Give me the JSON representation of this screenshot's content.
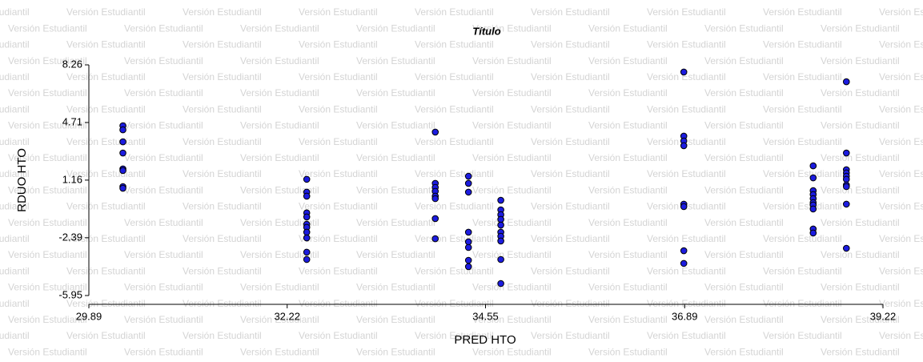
{
  "watermark": "Versión Estudiantil",
  "chart_data": {
    "type": "scatter",
    "title": "Título",
    "x_label": "PRED HTO",
    "y_label": "RDUO HTO",
    "xlim": [
      29.89,
      39.22
    ],
    "xticks": [
      29.89,
      32.22,
      34.55,
      36.89,
      39.22
    ],
    "ylim": [
      -5.95,
      8.26
    ],
    "yticks": [
      -5.95,
      -2.39,
      1.16,
      4.71,
      8.26
    ],
    "color": "#1c1ce0",
    "x": [
      30.29,
      30.29,
      30.29,
      30.29,
      30.29,
      30.29,
      30.29,
      30.29,
      32.45,
      32.45,
      32.45,
      32.45,
      32.45,
      32.45,
      32.45,
      32.45,
      32.45,
      32.45,
      32.45,
      33.96,
      33.96,
      33.96,
      33.96,
      33.96,
      33.96,
      33.96,
      33.96,
      34.35,
      34.35,
      34.35,
      34.35,
      34.35,
      34.35,
      34.35,
      34.35,
      34.73,
      34.73,
      34.73,
      34.73,
      34.73,
      34.73,
      34.73,
      34.73,
      34.73,
      34.73,
      36.88,
      36.88,
      36.88,
      36.88,
      36.88,
      36.88,
      36.88,
      36.88,
      38.4,
      38.4,
      38.4,
      38.4,
      38.4,
      38.4,
      38.4,
      38.4,
      38.4,
      38.4,
      38.79,
      38.79,
      38.79,
      38.79,
      38.79,
      38.79,
      38.79,
      38.79,
      38.79,
      38.79
    ],
    "values": [
      4.51,
      4.26,
      3.52,
      2.83,
      1.85,
      1.75,
      0.76,
      0.66,
      1.21,
      0.42,
      0.17,
      -0.86,
      -1.11,
      -1.56,
      -1.75,
      -2.05,
      -2.4,
      -3.28,
      -3.73,
      4.12,
      0.96,
      0.71,
      0.47,
      0.17,
      0.02,
      -1.21,
      -2.45,
      1.4,
      0.96,
      0.42,
      -2.05,
      -2.64,
      -2.99,
      -3.78,
      -4.17,
      -0.08,
      -0.67,
      -0.97,
      -1.26,
      -1.61,
      -2.05,
      -2.3,
      -2.59,
      -3.73,
      -5.21,
      7.82,
      3.87,
      3.57,
      3.28,
      -0.32,
      -0.47,
      -3.19,
      -3.97,
      2.04,
      1.3,
      0.51,
      0.27,
      0.02,
      -0.23,
      -0.37,
      -0.62,
      -1.85,
      -2.1,
      7.22,
      2.83,
      1.8,
      1.6,
      1.4,
      1.21,
      0.86,
      0.76,
      -0.32,
      -3.04
    ]
  }
}
